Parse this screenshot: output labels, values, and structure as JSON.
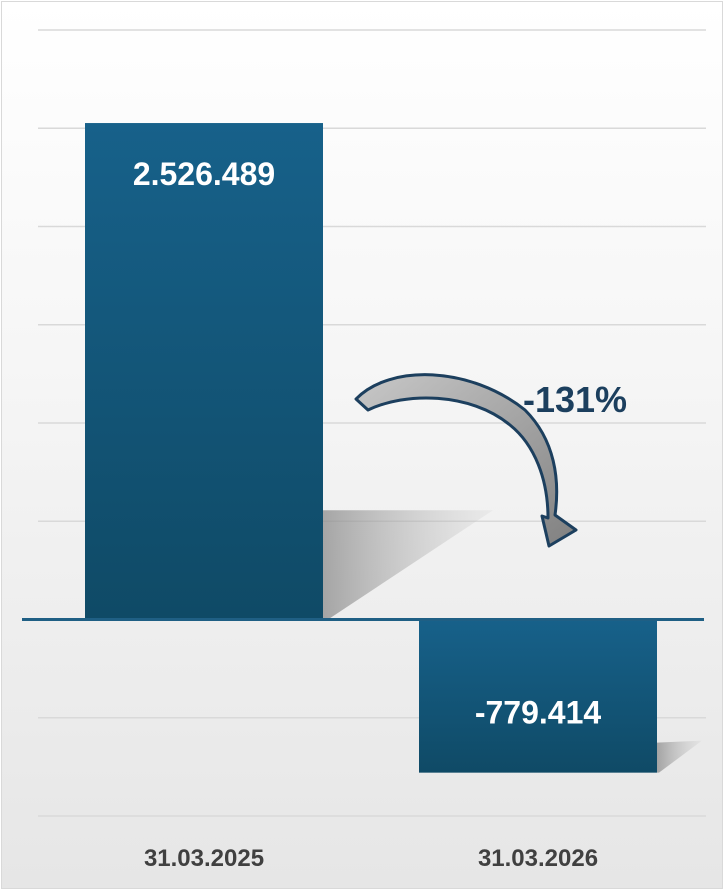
{
  "chart_data": {
    "type": "bar",
    "categories": [
      "31.03.2025",
      "31.03.2026"
    ],
    "values": [
      2526489,
      -779414
    ],
    "value_labels": [
      "2.526.489",
      "-779.414"
    ],
    "change_label": "-131%",
    "ylim": [
      -1000000,
      3000000
    ],
    "grid": true,
    "colors": {
      "bar": "#155a7c",
      "bar_dark": "#0f4a66",
      "baseline": "#1f5f84",
      "grid": "#d9d9d9",
      "label": "#ffffff",
      "category_label": "#404040",
      "change_label": "#1c3f5e",
      "arrow_fill": "#9c9c9c",
      "arrow_stroke": "#1c3f5e"
    }
  }
}
